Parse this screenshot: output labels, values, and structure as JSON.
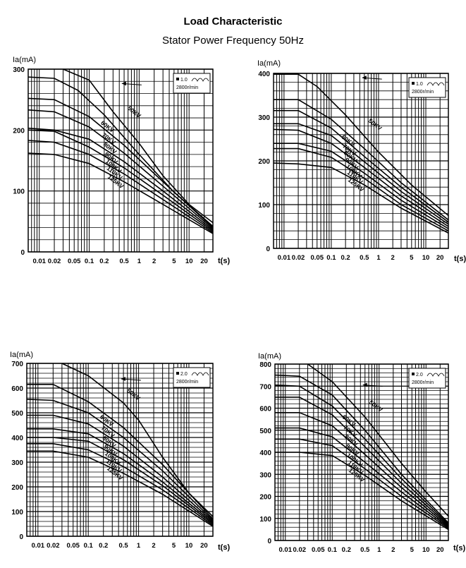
{
  "page": {
    "title": "Load Characteristic",
    "subtitle": "Stator Power Frequency 50Hz"
  },
  "chart_data": [
    {
      "type": "line",
      "ylabel": "Ia(mA)",
      "xlabel": "t(s)",
      "x_scale": "log",
      "xlim": [
        0.006,
        30
      ],
      "ylim": [
        0,
        300
      ],
      "x_ticks": [
        "0.01",
        "0.02",
        "0.05",
        "0.1",
        "0.2",
        "0.5",
        "1",
        "2",
        "5",
        "10",
        "20"
      ],
      "y_ticks": [
        "0",
        "100",
        "200",
        "300"
      ],
      "legend": {
        "focal": "1.0",
        "speed": "2800r/min",
        "placement": "top-right"
      },
      "arrow_label": "50KV",
      "series": [
        {
          "name": "50KV",
          "points": [
            [
              0.03,
              300
            ],
            [
              0.1,
              282
            ],
            [
              0.3,
              230
            ],
            [
              1,
              178
            ],
            [
              3,
              125
            ],
            [
              10,
              78
            ],
            [
              30,
              48
            ]
          ]
        },
        {
          "name": "60KV",
          "points": [
            [
              0.006,
              287
            ],
            [
              0.02,
              285
            ],
            [
              0.06,
              265
            ],
            [
              0.2,
              225
            ],
            [
              1,
              160
            ],
            [
              5,
              98
            ],
            [
              30,
              42
            ]
          ]
        },
        {
          "name": "70KV",
          "points": [
            [
              0.006,
              252
            ],
            [
              0.02,
              250
            ],
            [
              0.1,
              222
            ],
            [
              0.5,
              175
            ],
            [
              3,
              115
            ],
            [
              30,
              40
            ]
          ]
        },
        {
          "name": "80KV",
          "points": [
            [
              0.006,
              233
            ],
            [
              0.02,
              230
            ],
            [
              0.1,
              205
            ],
            [
              0.5,
              162
            ],
            [
              3,
              108
            ],
            [
              30,
              38
            ]
          ]
        },
        {
          "name": "90KV",
          "points": [
            [
              0.006,
              203
            ],
            [
              0.02,
              200
            ],
            [
              0.1,
              185
            ],
            [
              0.5,
              148
            ],
            [
              3,
              100
            ],
            [
              30,
              36
            ]
          ]
        },
        {
          "name": "100KV",
          "points": [
            [
              0.006,
              200
            ],
            [
              0.02,
              198
            ],
            [
              0.1,
              172
            ],
            [
              0.5,
              138
            ],
            [
              3,
              93
            ],
            [
              30,
              34
            ]
          ]
        },
        {
          "name": "110KV",
          "points": [
            [
              0.006,
              183
            ],
            [
              0.02,
              180
            ],
            [
              0.1,
              160
            ],
            [
              0.5,
              128
            ],
            [
              3,
              86
            ],
            [
              30,
              32
            ]
          ]
        },
        {
          "name": "125KV",
          "points": [
            [
              0.006,
              162
            ],
            [
              0.02,
              160
            ],
            [
              0.1,
              145
            ],
            [
              0.5,
              115
            ],
            [
              3,
              78
            ],
            [
              30,
              30
            ]
          ]
        }
      ]
    },
    {
      "type": "line",
      "ylabel": "Ia(mA)",
      "xlabel": "t(s)",
      "x_scale": "log",
      "xlim": [
        0.006,
        30
      ],
      "ylim": [
        0,
        400
      ],
      "x_ticks": [
        "0.01",
        "0.02",
        "0.05",
        "0.1",
        "0.2",
        "0.5",
        "1",
        "2",
        "5",
        "10",
        "20"
      ],
      "y_ticks": [
        "0",
        "100",
        "200",
        "300",
        "400"
      ],
      "legend": {
        "focal": "1.0",
        "speed": "2800r/min",
        "placement": "top-right"
      },
      "arrow_label": "50KV",
      "series": [
        {
          "name": "50KV",
          "points": [
            [
              0.006,
              398
            ],
            [
              0.02,
              398
            ],
            [
              0.05,
              370
            ],
            [
              0.2,
              305
            ],
            [
              1,
              220
            ],
            [
              5,
              145
            ],
            [
              30,
              75
            ]
          ]
        },
        {
          "name": "60KV",
          "points": [
            [
              0.006,
              340
            ],
            [
              0.02,
              340
            ],
            [
              0.1,
              295
            ],
            [
              0.5,
              228
            ],
            [
              3,
              150
            ],
            [
              30,
              65
            ]
          ]
        },
        {
          "name": "70KV",
          "points": [
            [
              0.006,
              315
            ],
            [
              0.02,
              315
            ],
            [
              0.1,
              275
            ],
            [
              0.5,
              210
            ],
            [
              3,
              140
            ],
            [
              30,
              60
            ]
          ]
        },
        {
          "name": "80KV",
          "points": [
            [
              0.006,
              285
            ],
            [
              0.02,
              285
            ],
            [
              0.1,
              258
            ],
            [
              0.5,
              198
            ],
            [
              3,
              130
            ],
            [
              30,
              55
            ]
          ]
        },
        {
          "name": "90KV",
          "points": [
            [
              0.006,
              272
            ],
            [
              0.02,
              270
            ],
            [
              0.1,
              240
            ],
            [
              0.5,
              185
            ],
            [
              3,
              120
            ],
            [
              30,
              50
            ]
          ]
        },
        {
          "name": "100KV",
          "points": [
            [
              0.006,
              240
            ],
            [
              0.02,
              240
            ],
            [
              0.1,
              222
            ],
            [
              0.5,
              172
            ],
            [
              3,
              110
            ],
            [
              30,
              45
            ]
          ]
        },
        {
          "name": "110KV",
          "points": [
            [
              0.006,
              228
            ],
            [
              0.02,
              228
            ],
            [
              0.1,
              208
            ],
            [
              0.5,
              160
            ],
            [
              3,
              100
            ],
            [
              30,
              40
            ]
          ]
        },
        {
          "name": "125KV",
          "points": [
            [
              0.006,
              195
            ],
            [
              0.02,
              193
            ],
            [
              0.1,
              185
            ],
            [
              0.5,
              145
            ],
            [
              3,
              92
            ],
            [
              30,
              35
            ]
          ]
        }
      ]
    },
    {
      "type": "line",
      "ylabel": "Ia(mA)",
      "xlabel": "t(s)",
      "x_scale": "log",
      "xlim": [
        0.006,
        30
      ],
      "ylim": [
        0,
        700
      ],
      "x_ticks": [
        "0.01",
        "0.02",
        "0.05",
        "0.1",
        "0.2",
        "0.5",
        "1",
        "2",
        "5",
        "10",
        "20"
      ],
      "y_ticks": [
        "0",
        "100",
        "200",
        "300",
        "400",
        "500",
        "600",
        "700"
      ],
      "legend": {
        "focal": "2.0",
        "speed": "2800r/min",
        "placement": "top-right"
      },
      "arrow_label": "50KV",
      "series": [
        {
          "name": "50KV",
          "points": [
            [
              0.03,
              700
            ],
            [
              0.1,
              650
            ],
            [
              0.5,
              540
            ],
            [
              1,
              470
            ],
            [
              3,
              320
            ],
            [
              10,
              175
            ],
            [
              30,
              80
            ]
          ]
        },
        {
          "name": "60KV",
          "points": [
            [
              0.006,
              615
            ],
            [
              0.02,
              615
            ],
            [
              0.1,
              545
            ],
            [
              0.5,
              440
            ],
            [
              3,
              290
            ],
            [
              30,
              70
            ]
          ]
        },
        {
          "name": "70KV",
          "points": [
            [
              0.006,
              555
            ],
            [
              0.02,
              550
            ],
            [
              0.1,
              500
            ],
            [
              0.5,
              400
            ],
            [
              3,
              265
            ],
            [
              30,
              65
            ]
          ]
        },
        {
          "name": "80KV",
          "points": [
            [
              0.006,
              490
            ],
            [
              0.02,
              490
            ],
            [
              0.1,
              455
            ],
            [
              0.5,
              365
            ],
            [
              3,
              240
            ],
            [
              30,
              60
            ]
          ]
        },
        {
          "name": "90KV",
          "points": [
            [
              0.006,
              435
            ],
            [
              0.02,
              435
            ],
            [
              0.1,
              415
            ],
            [
              0.5,
              335
            ],
            [
              3,
              220
            ],
            [
              30,
              55
            ]
          ]
        },
        {
          "name": "100KV",
          "points": [
            [
              0.006,
              400
            ],
            [
              0.02,
              400
            ],
            [
              0.1,
              385
            ],
            [
              0.5,
              310
            ],
            [
              3,
              205
            ],
            [
              30,
              50
            ]
          ]
        },
        {
          "name": "110KV",
          "points": [
            [
              0.006,
              375
            ],
            [
              0.02,
              375
            ],
            [
              0.1,
              350
            ],
            [
              0.5,
              282
            ],
            [
              3,
              188
            ],
            [
              30,
              45
            ]
          ]
        },
        {
          "name": "125KV",
          "points": [
            [
              0.006,
              345
            ],
            [
              0.02,
              345
            ],
            [
              0.1,
              320
            ],
            [
              0.5,
              255
            ],
            [
              3,
              170
            ],
            [
              30,
              40
            ]
          ]
        }
      ]
    },
    {
      "type": "line",
      "ylabel": "Ia(mA)",
      "xlabel": "t(s)",
      "x_scale": "log",
      "xlim": [
        0.006,
        30
      ],
      "ylim": [
        0,
        800
      ],
      "x_ticks": [
        "0.01",
        "0.02",
        "0.05",
        "0.1",
        "0.2",
        "0.5",
        "1",
        "2",
        "5",
        "10",
        "20"
      ],
      "y_ticks": [
        "0",
        "100",
        "200",
        "300",
        "400",
        "500",
        "600",
        "700",
        "800"
      ],
      "legend": {
        "focal": "2.0",
        "speed": "2800r/min",
        "placement": "top-right"
      },
      "arrow_label": "50KV",
      "series": [
        {
          "name": "50KV",
          "points": [
            [
              0.03,
              800
            ],
            [
              0.1,
              720
            ],
            [
              0.5,
              560
            ],
            [
              3,
              350
            ],
            [
              10,
              220
            ],
            [
              30,
              110
            ]
          ]
        },
        {
          "name": "60KV",
          "points": [
            [
              0.006,
              750
            ],
            [
              0.02,
              745
            ],
            [
              0.1,
              660
            ],
            [
              0.5,
              500
            ],
            [
              3,
              300
            ],
            [
              30,
              80
            ]
          ]
        },
        {
          "name": "70KV",
          "points": [
            [
              0.006,
              705
            ],
            [
              0.02,
              700
            ],
            [
              0.1,
              610
            ],
            [
              0.5,
              460
            ],
            [
              3,
              280
            ],
            [
              30,
              75
            ]
          ]
        },
        {
          "name": "80KV",
          "points": [
            [
              0.006,
              650
            ],
            [
              0.02,
              650
            ],
            [
              0.1,
              570
            ],
            [
              0.5,
              425
            ],
            [
              3,
              260
            ],
            [
              30,
              70
            ]
          ]
        },
        {
          "name": "90KV",
          "points": [
            [
              0.006,
              580
            ],
            [
              0.02,
              580
            ],
            [
              0.1,
              520
            ],
            [
              0.5,
              390
            ],
            [
              3,
              240
            ],
            [
              30,
              65
            ]
          ]
        },
        {
          "name": "100KV",
          "points": [
            [
              0.006,
              510
            ],
            [
              0.02,
              510
            ],
            [
              0.1,
              470
            ],
            [
              0.5,
              355
            ],
            [
              3,
              220
            ],
            [
              30,
              60
            ]
          ]
        },
        {
          "name": "110KV",
          "points": [
            [
              0.006,
              460
            ],
            [
              0.02,
              460
            ],
            [
              0.1,
              430
            ],
            [
              0.5,
              325
            ],
            [
              3,
              200
            ],
            [
              30,
              55
            ]
          ]
        },
        {
          "name": "125KV",
          "points": [
            [
              0.006,
              400
            ],
            [
              0.02,
              400
            ],
            [
              0.1,
              385
            ],
            [
              0.5,
              295
            ],
            [
              3,
              180
            ],
            [
              30,
              50
            ]
          ]
        }
      ]
    }
  ]
}
